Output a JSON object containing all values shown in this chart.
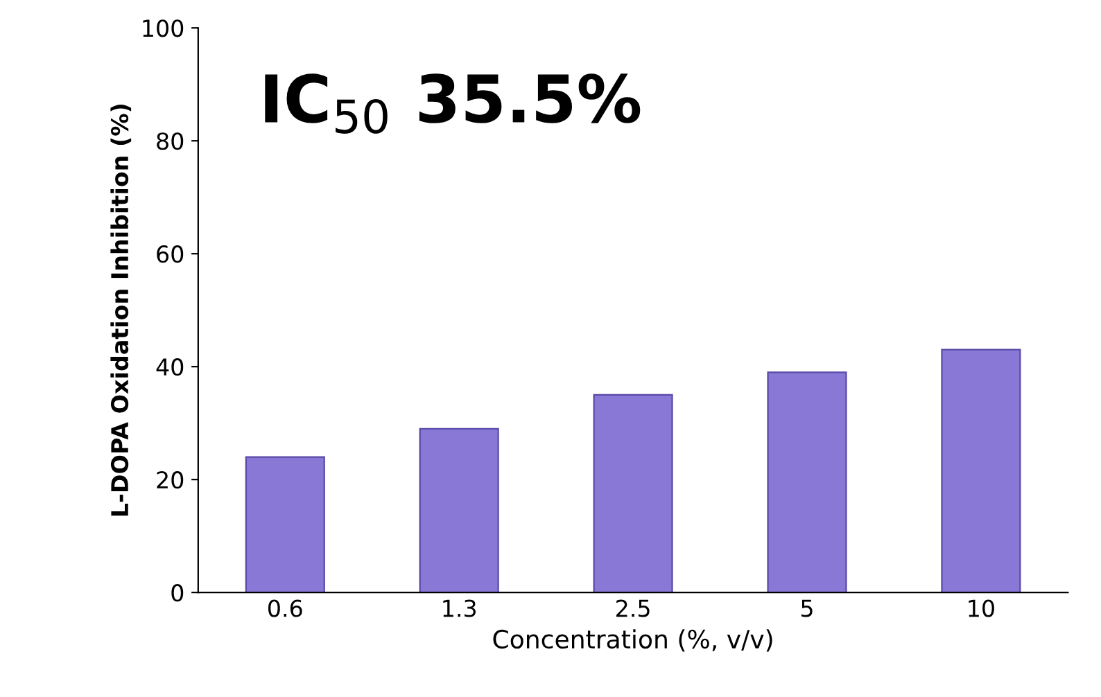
{
  "chart_data": {
    "type": "bar",
    "xlabel": "Concentration (%, v/v)",
    "ylabel": "L-DOPA Oxidation Inhibition (%)",
    "categories": [
      "0.6",
      "1.3",
      "2.5",
      "5",
      "10"
    ],
    "values": [
      24,
      29,
      35,
      39,
      43
    ],
    "color": "#8a78d6",
    "ylim": [
      0,
      100
    ],
    "yticks": [
      0,
      20,
      40,
      60,
      80,
      100
    ],
    "grid": false,
    "legend": false,
    "annotations": [
      "IC$_{50}$ 35.5%"
    ]
  }
}
